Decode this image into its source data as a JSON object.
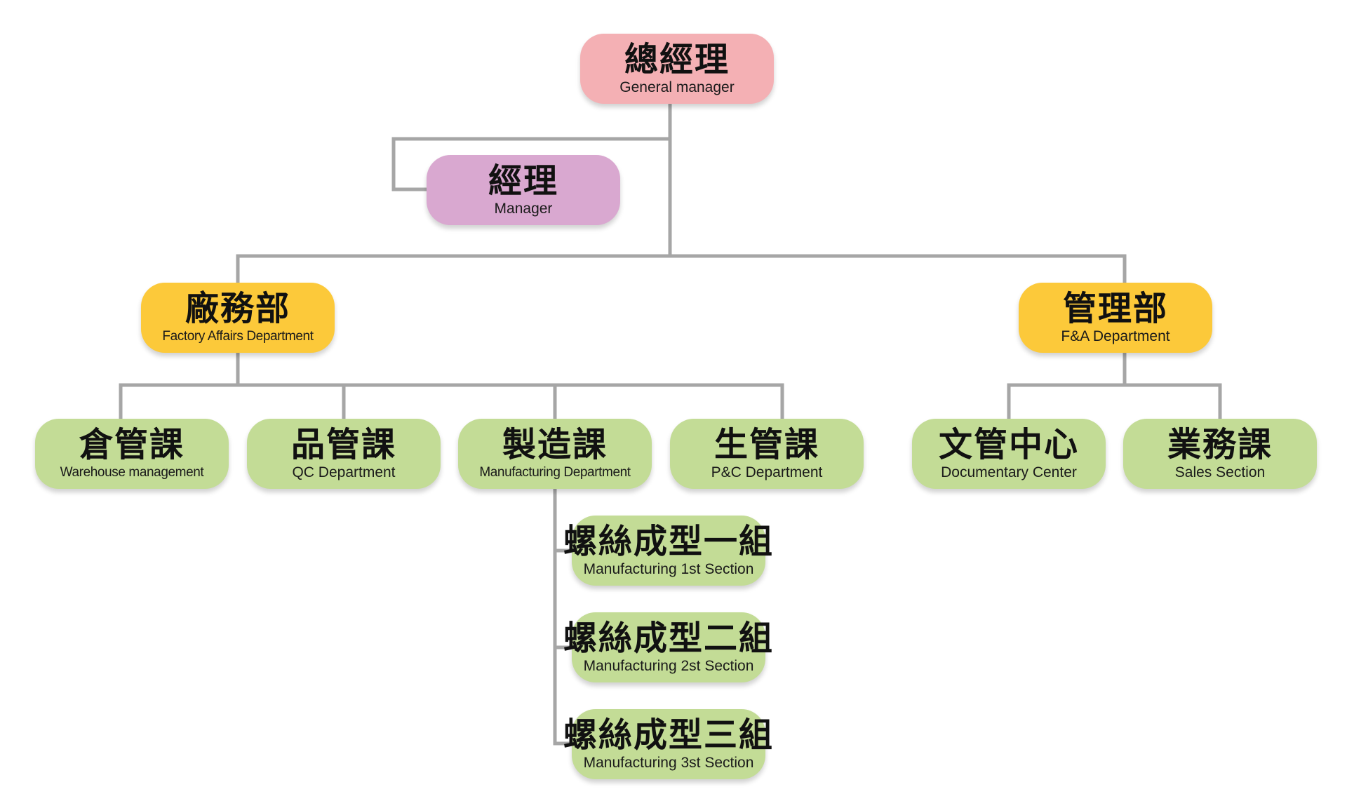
{
  "org": {
    "general_manager": {
      "zh": "總經理",
      "en": "General manager"
    },
    "manager": {
      "zh": "經理",
      "en": "Manager"
    },
    "factory_affairs": {
      "zh": "廠務部",
      "en": "Factory Affairs Department"
    },
    "fa_department": {
      "zh": "管理部",
      "en": "F&A Department"
    },
    "warehouse": {
      "zh": "倉管課",
      "en": "Warehouse management"
    },
    "qc": {
      "zh": "品管課",
      "en": "QC Department"
    },
    "manufacturing": {
      "zh": "製造課",
      "en": "Manufacturing Department"
    },
    "pc": {
      "zh": "生管課",
      "en": "P&C Department"
    },
    "documentary": {
      "zh": "文管中心",
      "en": "Documentary Center"
    },
    "sales": {
      "zh": "業務課",
      "en": "Sales Section"
    },
    "section1": {
      "zh": "螺絲成型一組",
      "en": "Manufacturing 1st Section"
    },
    "section2": {
      "zh": "螺絲成型二組",
      "en": "Manufacturing 2st Section"
    },
    "section3": {
      "zh": "螺絲成型三組",
      "en": "Manufacturing 3st Section"
    }
  },
  "colors": {
    "executive": "#f4b0b4",
    "manager": "#d9a8d0",
    "department": "#fcc93a",
    "section": "#c3dc96",
    "connector": "#a6a6a6"
  }
}
